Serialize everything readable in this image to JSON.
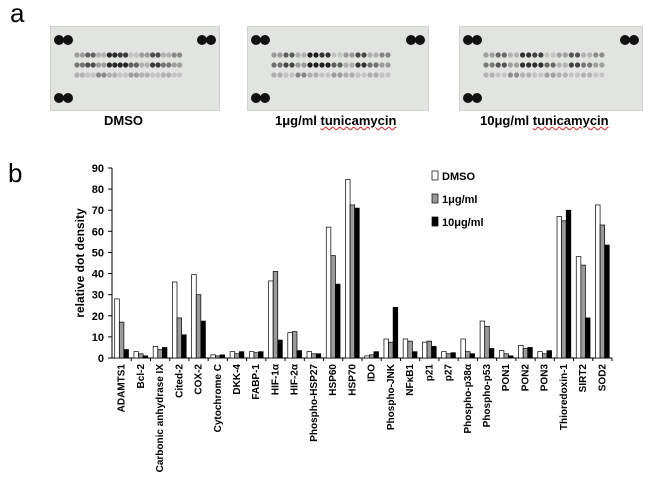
{
  "panels": {
    "a": "a",
    "b": "b"
  },
  "blots": [
    {
      "label_main": "DMSO",
      "label_squiggle": ""
    },
    {
      "label_main": "1μg/ml ",
      "label_squiggle": "tunicamycin"
    },
    {
      "label_main": "10μg/ml ",
      "label_squiggle": "tunicamycin"
    }
  ],
  "chart_data": {
    "type": "bar",
    "title": "",
    "xlabel": "",
    "ylabel": "relative dot density",
    "ylim": [
      0,
      90
    ],
    "yticks": [
      0,
      10,
      20,
      30,
      40,
      50,
      60,
      70,
      80,
      90
    ],
    "grid": false,
    "legend_position": "top-right",
    "categories": [
      "ADAMTS1",
      "Bcl-2",
      "Carbonic anhydrase IX",
      "Cited-2",
      "COX-2",
      "Cytochrome C",
      "DKK-4",
      "FABP-1",
      "HIF-1α",
      "HIF-2α",
      "Phospho-HSP27",
      "HSP60",
      "HSP70",
      "IDO",
      "Phospho-JNK",
      "NFκB1",
      "p21",
      "p27",
      "Phospho-p38α",
      "Phospho-p53",
      "PON1",
      "PON2",
      "PON3",
      "Thioredoxin-1",
      "SIRT2",
      "SOD2"
    ],
    "series": [
      {
        "name": "DMSO",
        "color": "#ffffff",
        "values": [
          28,
          3,
          5.5,
          36,
          39.5,
          1.5,
          3,
          3,
          36.5,
          12,
          3,
          62,
          84.5,
          1,
          9,
          9,
          7.5,
          3,
          9,
          17.5,
          3.5,
          6,
          3,
          67,
          48,
          72.5
        ]
      },
      {
        "name": "1μg/ml",
        "color": "#9a9a9a",
        "values": [
          17,
          2,
          4,
          19,
          30,
          1,
          2,
          2.5,
          41,
          12.5,
          2,
          48.5,
          72.5,
          1.5,
          7.5,
          8,
          8,
          2,
          3,
          15,
          2,
          4.5,
          2,
          65,
          44,
          63
        ]
      },
      {
        "name": "10μg/ml",
        "color": "#000000",
        "values": [
          4,
          1,
          5,
          11,
          17.5,
          1.5,
          3,
          3,
          8.5,
          3.5,
          2,
          35,
          71,
          3,
          24,
          3,
          5.5,
          2.5,
          2,
          4.5,
          1,
          5,
          3.5,
          70,
          19,
          53.5
        ]
      }
    ]
  }
}
